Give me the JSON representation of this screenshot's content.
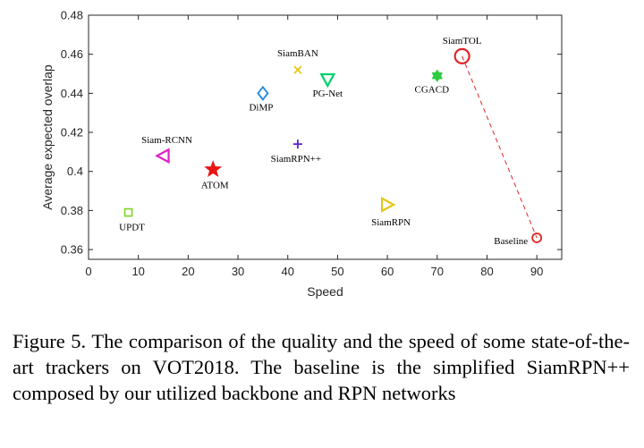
{
  "chart_data": {
    "type": "scatter",
    "xlabel": "Speed",
    "ylabel": "Average expected overlap",
    "xlim": [
      0,
      95
    ],
    "ylim": [
      0.355,
      0.48
    ],
    "xticks": [
      0,
      10,
      20,
      30,
      40,
      50,
      60,
      70,
      80,
      90
    ],
    "yticks": [
      0.36,
      0.38,
      0.4,
      0.42,
      0.44,
      0.46,
      0.48
    ],
    "ytick_labels": [
      "0.36",
      "0.38",
      "0.4",
      "0.42",
      "0.44",
      "0.46",
      "0.48"
    ],
    "grid": false,
    "points": [
      {
        "name": "SiamBAN",
        "x": 42,
        "y": 0.452,
        "marker": "x",
        "color": "#e6c619"
      },
      {
        "name": "PG-Net",
        "x": 48,
        "y": 0.447,
        "marker": "triangle-down",
        "color": "#00d26a"
      },
      {
        "name": "DiMP",
        "x": 35,
        "y": 0.44,
        "marker": "diamond",
        "color": "#1e88e5"
      },
      {
        "name": "SiamTOL",
        "x": 75,
        "y": 0.459,
        "marker": "circle",
        "color": "#e02424"
      },
      {
        "name": "CGACD",
        "x": 70,
        "y": 0.449,
        "marker": "hexagram",
        "color": "#2ecc40"
      },
      {
        "name": "SiamRPN++",
        "x": 42,
        "y": 0.414,
        "marker": "plus",
        "color": "#5a1fd6"
      },
      {
        "name": "Siam-RCNN",
        "x": 15,
        "y": 0.408,
        "marker": "triangle-left",
        "color": "#e020c8"
      },
      {
        "name": "ATOM",
        "x": 25,
        "y": 0.401,
        "marker": "star",
        "color": "#e81414"
      },
      {
        "name": "UPDT",
        "x": 8,
        "y": 0.379,
        "marker": "square",
        "color": "#7ed321"
      },
      {
        "name": "SiamRPN",
        "x": 60,
        "y": 0.383,
        "marker": "triangle-right",
        "color": "#e6c619"
      },
      {
        "name": "Baseline",
        "x": 90,
        "y": 0.366,
        "marker": "circle-small",
        "color": "#e02424"
      }
    ],
    "connector": {
      "from": "SiamTOL",
      "to": "Baseline",
      "style": "dashed",
      "color": "#e02424"
    }
  },
  "caption": "Figure 5. The comparison of the quality and the speed of some state-of-the-art trackers on VOT2018. The baseline is the simplified SiamRPN++ composed by our utilized backbone and RPN networks"
}
